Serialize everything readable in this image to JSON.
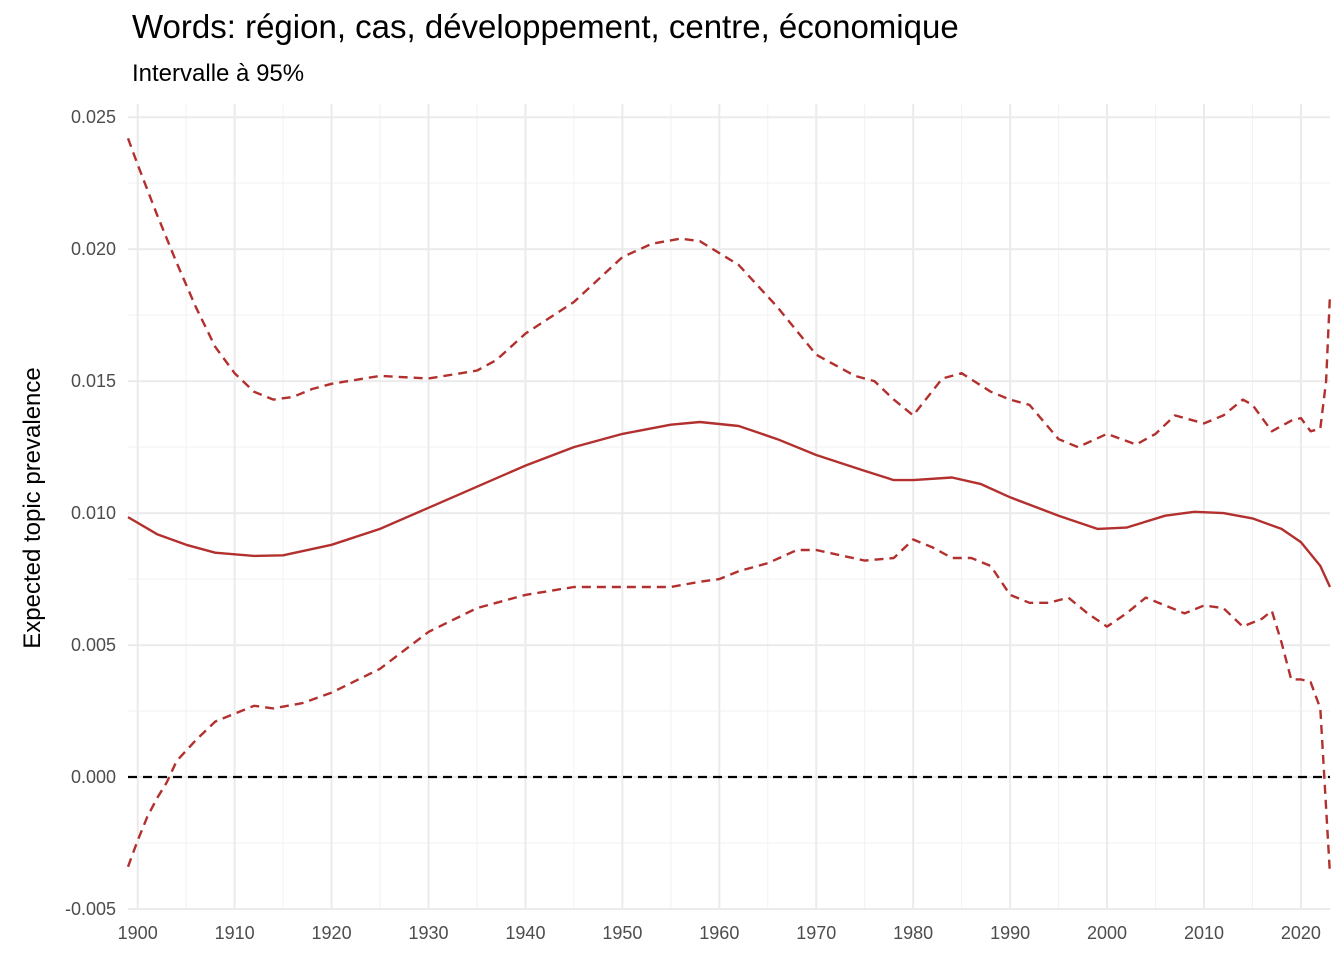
{
  "chart_data": {
    "type": "line",
    "title": "Words: région, cas, développement, centre, économique",
    "subtitle": "Intervalle à 95%",
    "xlabel": "",
    "ylabel": "Expected topic prevalence",
    "xlim": [
      1899,
      2023
    ],
    "ylim": [
      -0.005,
      0.0255
    ],
    "x_ticks": [
      1900,
      1910,
      1920,
      1930,
      1940,
      1950,
      1960,
      1970,
      1980,
      1990,
      2000,
      2010,
      2020
    ],
    "y_ticks": [
      -0.005,
      0.0,
      0.005,
      0.01,
      0.015,
      0.02,
      0.025
    ],
    "y_tick_labels": [
      "-0.005",
      "0.000",
      "0.005",
      "0.010",
      "0.015",
      "0.020",
      "0.025"
    ],
    "grid": true,
    "reference_line": 0,
    "line_color": "#b2302e",
    "series": [
      {
        "style": "solid",
        "points": [
          [
            1899,
            0.00985
          ],
          [
            1902,
            0.0092
          ],
          [
            1905,
            0.0088
          ],
          [
            1908,
            0.0085
          ],
          [
            1912,
            0.00838
          ],
          [
            1915,
            0.0084
          ],
          [
            1920,
            0.0088
          ],
          [
            1925,
            0.0094
          ],
          [
            1930,
            0.0102
          ],
          [
            1935,
            0.011
          ],
          [
            1940,
            0.0118
          ],
          [
            1945,
            0.0125
          ],
          [
            1950,
            0.013
          ],
          [
            1955,
            0.01335
          ],
          [
            1958,
            0.01345
          ],
          [
            1962,
            0.0133
          ],
          [
            1966,
            0.0128
          ],
          [
            1970,
            0.0122
          ],
          [
            1975,
            0.0116
          ],
          [
            1978,
            0.01125
          ],
          [
            1980,
            0.01125
          ],
          [
            1984,
            0.01135
          ],
          [
            1987,
            0.0111
          ],
          [
            1990,
            0.0106
          ],
          [
            1995,
            0.0099
          ],
          [
            1999,
            0.0094
          ],
          [
            2002,
            0.00945
          ],
          [
            2006,
            0.0099
          ],
          [
            2009,
            0.01005
          ],
          [
            2012,
            0.01
          ],
          [
            2015,
            0.0098
          ],
          [
            2018,
            0.0094
          ],
          [
            2020,
            0.0089
          ],
          [
            2022,
            0.008
          ],
          [
            2023,
            0.0072
          ]
        ]
      },
      {
        "style": "dashed",
        "points": [
          [
            1899,
            0.0242
          ],
          [
            1900,
            0.0232
          ],
          [
            1902,
            0.0213
          ],
          [
            1904,
            0.0195
          ],
          [
            1906,
            0.0178
          ],
          [
            1908,
            0.0163
          ],
          [
            1910,
            0.0153
          ],
          [
            1912,
            0.0146
          ],
          [
            1914,
            0.0143
          ],
          [
            1916,
            0.0144
          ],
          [
            1918,
            0.0147
          ],
          [
            1920,
            0.0149
          ],
          [
            1925,
            0.0152
          ],
          [
            1930,
            0.0151
          ],
          [
            1935,
            0.0154
          ],
          [
            1937,
            0.0158
          ],
          [
            1940,
            0.0168
          ],
          [
            1945,
            0.018
          ],
          [
            1950,
            0.0197
          ],
          [
            1953,
            0.0202
          ],
          [
            1956,
            0.0204
          ],
          [
            1958,
            0.0203
          ],
          [
            1962,
            0.0194
          ],
          [
            1966,
            0.0178
          ],
          [
            1970,
            0.016
          ],
          [
            1974,
            0.0152
          ],
          [
            1976,
            0.015
          ],
          [
            1978,
            0.0143
          ],
          [
            1980,
            0.0137
          ],
          [
            1983,
            0.0151
          ],
          [
            1985,
            0.0153
          ],
          [
            1988,
            0.0146
          ],
          [
            1990,
            0.0143
          ],
          [
            1992,
            0.0141
          ],
          [
            1995,
            0.0128
          ],
          [
            1997,
            0.0125
          ],
          [
            2000,
            0.013
          ],
          [
            2003,
            0.0126
          ],
          [
            2005,
            0.013
          ],
          [
            2007,
            0.0137
          ],
          [
            2010,
            0.0134
          ],
          [
            2012,
            0.0137
          ],
          [
            2014,
            0.0143
          ],
          [
            2015,
            0.0141
          ],
          [
            2017,
            0.0131
          ],
          [
            2019,
            0.0135
          ],
          [
            2020,
            0.0136
          ],
          [
            2021,
            0.0131
          ],
          [
            2022,
            0.0132
          ],
          [
            2022.6,
            0.015
          ],
          [
            2023,
            0.0183
          ]
        ]
      },
      {
        "style": "dashed",
        "points": [
          [
            1899,
            -0.0034
          ],
          [
            1900,
            -0.0024
          ],
          [
            1901,
            -0.0015
          ],
          [
            1902,
            -0.0008
          ],
          [
            1903,
            -0.0002
          ],
          [
            1904,
            0.0006
          ],
          [
            1906,
            0.0014
          ],
          [
            1908,
            0.0021
          ],
          [
            1910,
            0.0024
          ],
          [
            1912,
            0.0027
          ],
          [
            1914,
            0.0026
          ],
          [
            1917,
            0.0028
          ],
          [
            1920,
            0.0032
          ],
          [
            1925,
            0.0041
          ],
          [
            1930,
            0.0055
          ],
          [
            1935,
            0.0064
          ],
          [
            1940,
            0.0069
          ],
          [
            1945,
            0.0072
          ],
          [
            1950,
            0.0072
          ],
          [
            1955,
            0.0072
          ],
          [
            1958,
            0.0074
          ],
          [
            1960,
            0.0075
          ],
          [
            1962,
            0.0078
          ],
          [
            1965,
            0.0081
          ],
          [
            1968,
            0.0086
          ],
          [
            1970,
            0.0086
          ],
          [
            1975,
            0.0082
          ],
          [
            1978,
            0.0083
          ],
          [
            1980,
            0.009
          ],
          [
            1982,
            0.0087
          ],
          [
            1984,
            0.0083
          ],
          [
            1986,
            0.0083
          ],
          [
            1988,
            0.008
          ],
          [
            1990,
            0.0069
          ],
          [
            1992,
            0.0066
          ],
          [
            1994,
            0.0066
          ],
          [
            1996,
            0.0068
          ],
          [
            1998,
            0.0062
          ],
          [
            2000,
            0.0057
          ],
          [
            2002,
            0.0062
          ],
          [
            2004,
            0.0068
          ],
          [
            2006,
            0.0065
          ],
          [
            2008,
            0.0062
          ],
          [
            2010,
            0.0065
          ],
          [
            2012,
            0.0064
          ],
          [
            2014,
            0.0057
          ],
          [
            2016,
            0.006
          ],
          [
            2017,
            0.0063
          ],
          [
            2018,
            0.0051
          ],
          [
            2019,
            0.0037
          ],
          [
            2020,
            0.0037
          ],
          [
            2021,
            0.0036
          ],
          [
            2022,
            0.0026
          ],
          [
            2023,
            -0.0037
          ]
        ]
      }
    ]
  }
}
